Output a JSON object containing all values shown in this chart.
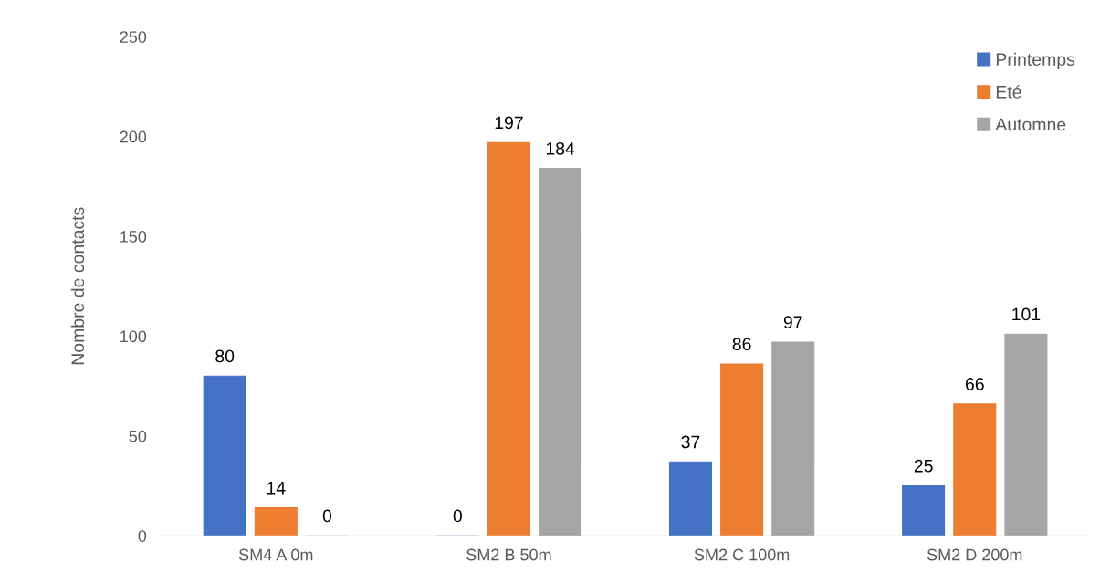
{
  "chart_data": {
    "type": "bar",
    "ylabel": "Nombre de contacts",
    "categories": [
      "SM4 A 0m",
      "SM2 B 50m",
      "SM2 C 100m",
      "SM2 D 200m"
    ],
    "series": [
      {
        "name": "Printemps",
        "color": "#4472c4",
        "values": [
          80,
          0,
          37,
          25
        ]
      },
      {
        "name": "Eté",
        "color": "#ed7d31",
        "values": [
          14,
          197,
          86,
          66
        ]
      },
      {
        "name": "Automne",
        "color": "#a5a5a5",
        "values": [
          0,
          184,
          97,
          101
        ]
      }
    ],
    "ylim": [
      0,
      250
    ],
    "yticks": [
      0,
      50,
      100,
      150,
      200,
      250
    ],
    "data_labels": true,
    "grid": false,
    "legend": "top right"
  }
}
